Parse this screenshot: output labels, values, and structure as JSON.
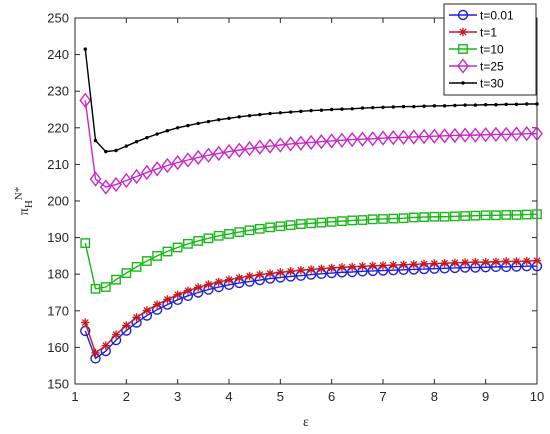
{
  "chart_data": {
    "type": "line",
    "xlabel": "ε",
    "ylabel_main": "π",
    "ylabel_sub": "H",
    "ylabel_sup": "N*",
    "xlim": [
      1,
      10
    ],
    "ylim": [
      150,
      250
    ],
    "xticks": [
      1,
      2,
      3,
      4,
      5,
      6,
      7,
      8,
      9,
      10
    ],
    "yticks": [
      150,
      160,
      170,
      180,
      190,
      200,
      210,
      220,
      230,
      240,
      250
    ],
    "grid": false,
    "legend_position": "top-right",
    "x": [
      1.2,
      1.4,
      1.6,
      1.8,
      2.0,
      2.2,
      2.4,
      2.6,
      2.8,
      3.0,
      3.2,
      3.4,
      3.6,
      3.8,
      4.0,
      4.2,
      4.4,
      4.6,
      4.8,
      5.0,
      5.2,
      5.4,
      5.6,
      5.8,
      6.0,
      6.2,
      6.4,
      6.6,
      6.8,
      7.0,
      7.2,
      7.4,
      7.6,
      7.8,
      8.0,
      8.2,
      8.4,
      8.6,
      8.8,
      9.0,
      9.2,
      9.4,
      9.6,
      9.8,
      10.0
    ],
    "series": [
      {
        "name": "t=0.01",
        "color": "#1f1fd6",
        "marker": "circle",
        "values": [
          164.5,
          157.0,
          159.0,
          162.0,
          164.6,
          166.8,
          168.7,
          170.3,
          171.7,
          173.0,
          174.1,
          175.0,
          175.8,
          176.5,
          177.1,
          177.6,
          178.0,
          178.4,
          178.8,
          179.1,
          179.4,
          179.6,
          179.9,
          180.1,
          180.3,
          180.5,
          180.6,
          180.8,
          180.9,
          181.0,
          181.1,
          181.2,
          181.3,
          181.4,
          181.5,
          181.6,
          181.7,
          181.8,
          181.8,
          181.9,
          182.0,
          182.0,
          182.1,
          182.2,
          182.2
        ]
      },
      {
        "name": "t=1",
        "color": "#c8191b",
        "marker": "asterisk",
        "values": [
          166.8,
          158.5,
          160.5,
          163.5,
          166.0,
          168.2,
          170.1,
          171.7,
          173.1,
          174.4,
          175.5,
          176.4,
          177.2,
          177.9,
          178.5,
          179.0,
          179.5,
          179.9,
          180.2,
          180.5,
          180.8,
          181.1,
          181.3,
          181.5,
          181.7,
          181.9,
          182.0,
          182.2,
          182.3,
          182.4,
          182.5,
          182.6,
          182.7,
          182.8,
          182.9,
          183.0,
          183.1,
          183.2,
          183.3,
          183.3,
          183.4,
          183.5,
          183.5,
          183.6,
          183.7
        ]
      },
      {
        "name": "t=10",
        "color": "#18b818",
        "marker": "square",
        "values": [
          188.5,
          176.0,
          176.5,
          178.5,
          180.3,
          182.0,
          183.6,
          185.0,
          186.2,
          187.3,
          188.3,
          189.1,
          189.8,
          190.5,
          191.0,
          191.5,
          192.0,
          192.4,
          192.8,
          193.1,
          193.4,
          193.7,
          193.9,
          194.1,
          194.3,
          194.5,
          194.7,
          194.8,
          195.0,
          195.1,
          195.2,
          195.3,
          195.5,
          195.6,
          195.7,
          195.7,
          195.8,
          195.9,
          196.0,
          196.1,
          196.1,
          196.2,
          196.2,
          196.3,
          196.4
        ]
      },
      {
        "name": "t=25",
        "color": "#c828c8",
        "marker": "diamond",
        "values": [
          227.5,
          206.0,
          203.8,
          204.5,
          205.6,
          206.7,
          207.8,
          208.8,
          209.7,
          210.5,
          211.2,
          211.9,
          212.5,
          213.0,
          213.5,
          213.9,
          214.3,
          214.7,
          215.0,
          215.3,
          215.6,
          215.8,
          216.0,
          216.2,
          216.4,
          216.6,
          216.8,
          216.9,
          217.0,
          217.2,
          217.3,
          217.4,
          217.5,
          217.6,
          217.7,
          217.8,
          217.9,
          218.0,
          218.0,
          218.1,
          218.2,
          218.2,
          218.3,
          218.4,
          218.4
        ]
      },
      {
        "name": "t=30",
        "color": "#000000",
        "marker": "dot",
        "values": [
          241.5,
          216.5,
          213.5,
          213.8,
          215.0,
          216.2,
          217.3,
          218.3,
          219.2,
          220.0,
          220.6,
          221.2,
          221.7,
          222.2,
          222.6,
          223.0,
          223.3,
          223.6,
          223.9,
          224.1,
          224.3,
          224.5,
          224.7,
          224.8,
          225.0,
          225.1,
          225.2,
          225.4,
          225.5,
          225.6,
          225.7,
          225.8,
          225.8,
          225.9,
          226.0,
          226.0,
          226.1,
          226.2,
          226.2,
          226.3,
          226.3,
          226.4,
          226.4,
          226.5,
          226.5
        ]
      }
    ]
  }
}
